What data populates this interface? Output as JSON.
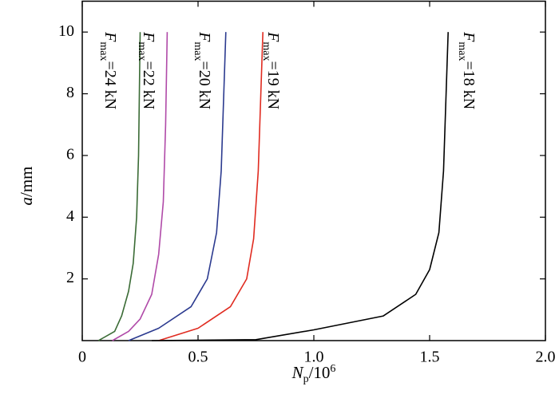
{
  "chart_data": {
    "type": "line",
    "xlabel": {
      "symbol": "N",
      "subscript": "p",
      "text": "/10",
      "superscript": "6"
    },
    "ylabel": {
      "symbol": "a",
      "text": "/mm"
    },
    "label_symbol": "F",
    "label_subscript": "max",
    "xlim": [
      0,
      2
    ],
    "ylim": [
      0,
      11
    ],
    "xticks": [
      0,
      0.5,
      {
        "value": 1,
        "label": "1.0"
      },
      1.5,
      {
        "value": 2,
        "label": "2.0"
      }
    ],
    "yticks": [
      2,
      4,
      6,
      8,
      10
    ],
    "series": [
      {
        "name": "=24 kN",
        "color": "#3a6b35",
        "x": [
          0.07,
          0.14,
          0.17,
          0.2,
          0.22,
          0.235,
          0.243,
          0.25
        ],
        "values": [
          0,
          0.3,
          0.8,
          1.6,
          2.5,
          4,
          6,
          10
        ]
      },
      {
        "name": "=22 kN",
        "color": "#b04aa8",
        "x": [
          0.13,
          0.2,
          0.25,
          0.3,
          0.33,
          0.35,
          0.36,
          0.367
        ],
        "values": [
          0,
          0.3,
          0.7,
          1.5,
          2.8,
          4.5,
          7,
          10
        ]
      },
      {
        "name": "=20 kN",
        "color": "#2b3a8f",
        "x": [
          0.2,
          0.33,
          0.47,
          0.54,
          0.58,
          0.6,
          0.62
        ],
        "values": [
          0,
          0.4,
          1.1,
          2,
          3.5,
          5.5,
          10
        ]
      },
      {
        "name": "=19 kN",
        "color": "#e02b20",
        "x": [
          0.33,
          0.5,
          0.64,
          0.71,
          0.74,
          0.76,
          0.78
        ],
        "values": [
          0,
          0.4,
          1.1,
          2,
          3.3,
          5.5,
          10
        ]
      },
      {
        "name": "=18 kN",
        "color": "#000000",
        "x": [
          0.3,
          0.75,
          1.0,
          1.3,
          1.44,
          1.5,
          1.54,
          1.56,
          1.58
        ],
        "values": [
          0,
          0.03,
          0.35,
          0.8,
          1.5,
          2.3,
          3.5,
          5.5,
          10
        ]
      }
    ]
  }
}
